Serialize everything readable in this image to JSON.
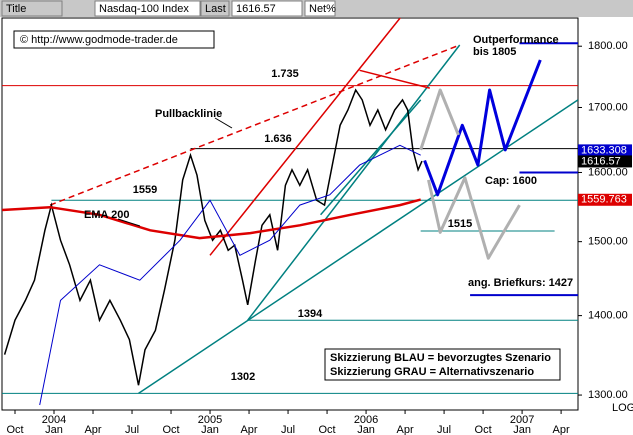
{
  "toolbar": {
    "items": [
      "Title",
      "Nasdaq-100 Index",
      "Last",
      "1616.57",
      "Net%"
    ]
  },
  "chart_data": {
    "type": "line",
    "log": true,
    "xlim": [
      -1,
      43.3
    ],
    "ylim": [
      1282,
      1848
    ],
    "xticks": [
      {
        "value": 0,
        "label": "Oct"
      },
      {
        "value": 3,
        "label": "Jan"
      },
      {
        "value": 6,
        "label": "Apr"
      },
      {
        "value": 9,
        "label": "Jul"
      },
      {
        "value": 12,
        "label": "Oct"
      },
      {
        "value": 15,
        "label": "Jan"
      },
      {
        "value": 18,
        "label": "Apr"
      },
      {
        "value": 21,
        "label": "Jul"
      },
      {
        "value": 24,
        "label": "Oct"
      },
      {
        "value": 27,
        "label": "Jan"
      },
      {
        "value": 30,
        "label": "Apr"
      },
      {
        "value": 33,
        "label": "Jul"
      },
      {
        "value": 36,
        "label": "Oct"
      },
      {
        "value": 39,
        "label": "Jan"
      },
      {
        "value": 42,
        "label": "Apr"
      }
    ],
    "year_labels": [
      {
        "value": 3,
        "label": "2004"
      },
      {
        "value": 15,
        "label": "2005"
      },
      {
        "value": 27,
        "label": "2006"
      },
      {
        "value": 39,
        "label": "2007"
      }
    ],
    "yticks": [
      {
        "value": 1800,
        "label": "1800.00"
      },
      {
        "value": 1700,
        "label": "1700.00"
      },
      {
        "value": 1600,
        "label": "1600.00"
      },
      {
        "value": 1500,
        "label": "1500.00"
      },
      {
        "value": 1400,
        "label": "1400.00"
      },
      {
        "value": 1300,
        "label": "1300.00"
      }
    ],
    "scale_label": "LOG",
    "series": [
      {
        "name": "Nasdaq-100 Index",
        "color": "#000000",
        "width": 1.5,
        "x": [
          -0.8,
          0,
          0.8,
          1.5,
          2.3,
          2.8,
          3.5,
          4.2,
          5,
          5.8,
          6.5,
          7.3,
          8.1,
          8.8,
          9.5,
          10,
          10.8,
          11.5,
          12.3,
          12.9,
          13.5,
          14,
          14.6,
          15.2,
          15.8,
          16.4,
          16.9,
          17.5,
          17.9,
          18.5,
          19,
          19.6,
          20.2,
          20.8,
          21.3,
          21.9,
          22.5,
          23.2,
          23.8,
          24.4,
          25,
          25.6,
          26.2,
          26.7,
          27.3,
          27.9,
          28.5,
          29.2,
          29.8,
          30.2,
          30.6,
          31,
          31.3
        ],
        "values": [
          1350,
          1394,
          1420,
          1447,
          1516,
          1552,
          1502,
          1468,
          1420,
          1447,
          1394,
          1420,
          1394,
          1369,
          1312,
          1356,
          1381,
          1434,
          1502,
          1589,
          1626,
          1596,
          1530,
          1502,
          1516,
          1488,
          1495,
          1447,
          1414,
          1474,
          1523,
          1538,
          1488,
          1581,
          1604,
          1581,
          1604,
          1559,
          1552,
          1611,
          1672,
          1696,
          1728,
          1712,
          1672,
          1696,
          1665,
          1696,
          1712,
          1696,
          1634,
          1604,
          1617
        ]
      },
      {
        "name": "EMA 200",
        "color": "#dd0000",
        "width": 2.5,
        "x": [
          -1,
          2.7,
          6.5,
          10.4,
          14.2,
          18.1,
          21.9,
          25.8,
          29.6,
          31.2
        ],
        "values": [
          1545,
          1549,
          1538,
          1516,
          1505,
          1512,
          1523,
          1538,
          1552,
          1560
        ]
      },
      {
        "color": "#0000cc",
        "width": 1,
        "x": [
          1.9,
          3.5,
          6.5,
          9.6,
          12.7,
          15,
          17.3,
          19.6,
          21.9,
          24.2,
          26.5,
          29.6,
          31.2
        ],
        "values": [
          1288,
          1420,
          1468,
          1447,
          1502,
          1559,
          1481,
          1502,
          1552,
          1567,
          1611,
          1641,
          1626
        ]
      }
    ],
    "levels": [
      {
        "label": "1.735",
        "value": 1735,
        "from": -1,
        "to": 43.3,
        "color": "#dd0000"
      },
      {
        "label": "1.636",
        "value": 1636,
        "from": 13.5,
        "to": 43.3,
        "color": "#000000"
      },
      {
        "label": "1559",
        "value": 1559,
        "from": 2.8,
        "to": 43.3,
        "color": "#008080"
      },
      {
        "label": "1515",
        "value": 1515,
        "from": 31.2,
        "to": 41.5,
        "color": "#008080"
      },
      {
        "label": "1394",
        "value": 1394,
        "from": 17.9,
        "to": 43.3,
        "color": "#008080"
      },
      {
        "label": "1302",
        "value": 1302,
        "from": -1,
        "to": 43.3,
        "color": "#008080"
      },
      {
        "label": [
          "Outperformance",
          "bis 1805"
        ],
        "value": 1805,
        "from": 38.8,
        "to": 43.3,
        "color": "#0000cc"
      },
      {
        "label": "Cap: 1600",
        "value": 1600,
        "from": 38.8,
        "to": 43.3,
        "color": "#0000cc"
      },
      {
        "label": "ang. Briefkurs: 1427",
        "value": 1427,
        "from": 35,
        "to": 43.3,
        "color": "#0000cc"
      }
    ],
    "trendlines": [
      {
        "x": [
          2.7,
          34.2
        ],
        "y": [
          1552,
          1802
        ],
        "color": "#dd0000",
        "dashed": true
      },
      {
        "x": [
          15,
          30.4
        ],
        "y": [
          1481,
          1870
        ],
        "color": "#dd0000"
      },
      {
        "x": [
          9.5,
          43.3
        ],
        "y": [
          1302,
          1712
        ],
        "color": "#008080"
      },
      {
        "x": [
          17.9,
          34.2
        ],
        "y": [
          1394,
          1802
        ],
        "color": "#008080"
      },
      {
        "x": [
          23.5,
          31.2
        ],
        "y": [
          1538,
          1712
        ],
        "color": "#008080"
      },
      {
        "x": [
          26.5,
          31.9
        ],
        "y": [
          1760,
          1731
        ],
        "color": "#dd0000"
      }
    ],
    "scenarios": [
      {
        "x": [
          31.5,
          32.5,
          34.4,
          35.6,
          36.5,
          37.7,
          40.4
        ],
        "y": [
          1618,
          1567,
          1672,
          1611,
          1728,
          1634,
          1777
        ],
        "color": "#0000dd",
        "width": 3
      },
      {
        "x": [
          31.2,
          32.7,
          34.1
        ],
        "y": [
          1634,
          1728,
          1657
        ],
        "color": "#b0b0b0",
        "width": 3
      },
      {
        "x": [
          31.8,
          32.7,
          34.6,
          36.4,
          38.8
        ],
        "y": [
          1589,
          1513,
          1592,
          1477,
          1552
        ],
        "color": "#b0b0b0",
        "width": 3
      }
    ],
    "price_markers": [
      {
        "value": 1633.308,
        "label": "1633.308",
        "color": "#0000cc"
      },
      {
        "value": 1616.57,
        "label": "1616.57",
        "color": "#000000"
      },
      {
        "value": 1559.763,
        "label": "1559.763",
        "color": "#dd0000"
      }
    ],
    "annotations": [
      "© http://www.godmode-trader.de",
      "Pullbacklinie",
      "EMA 200",
      "Skizzierung BLAU = bevorzugtes Szenario",
      "Skizzierung GRAU = Alternativszenario"
    ]
  }
}
